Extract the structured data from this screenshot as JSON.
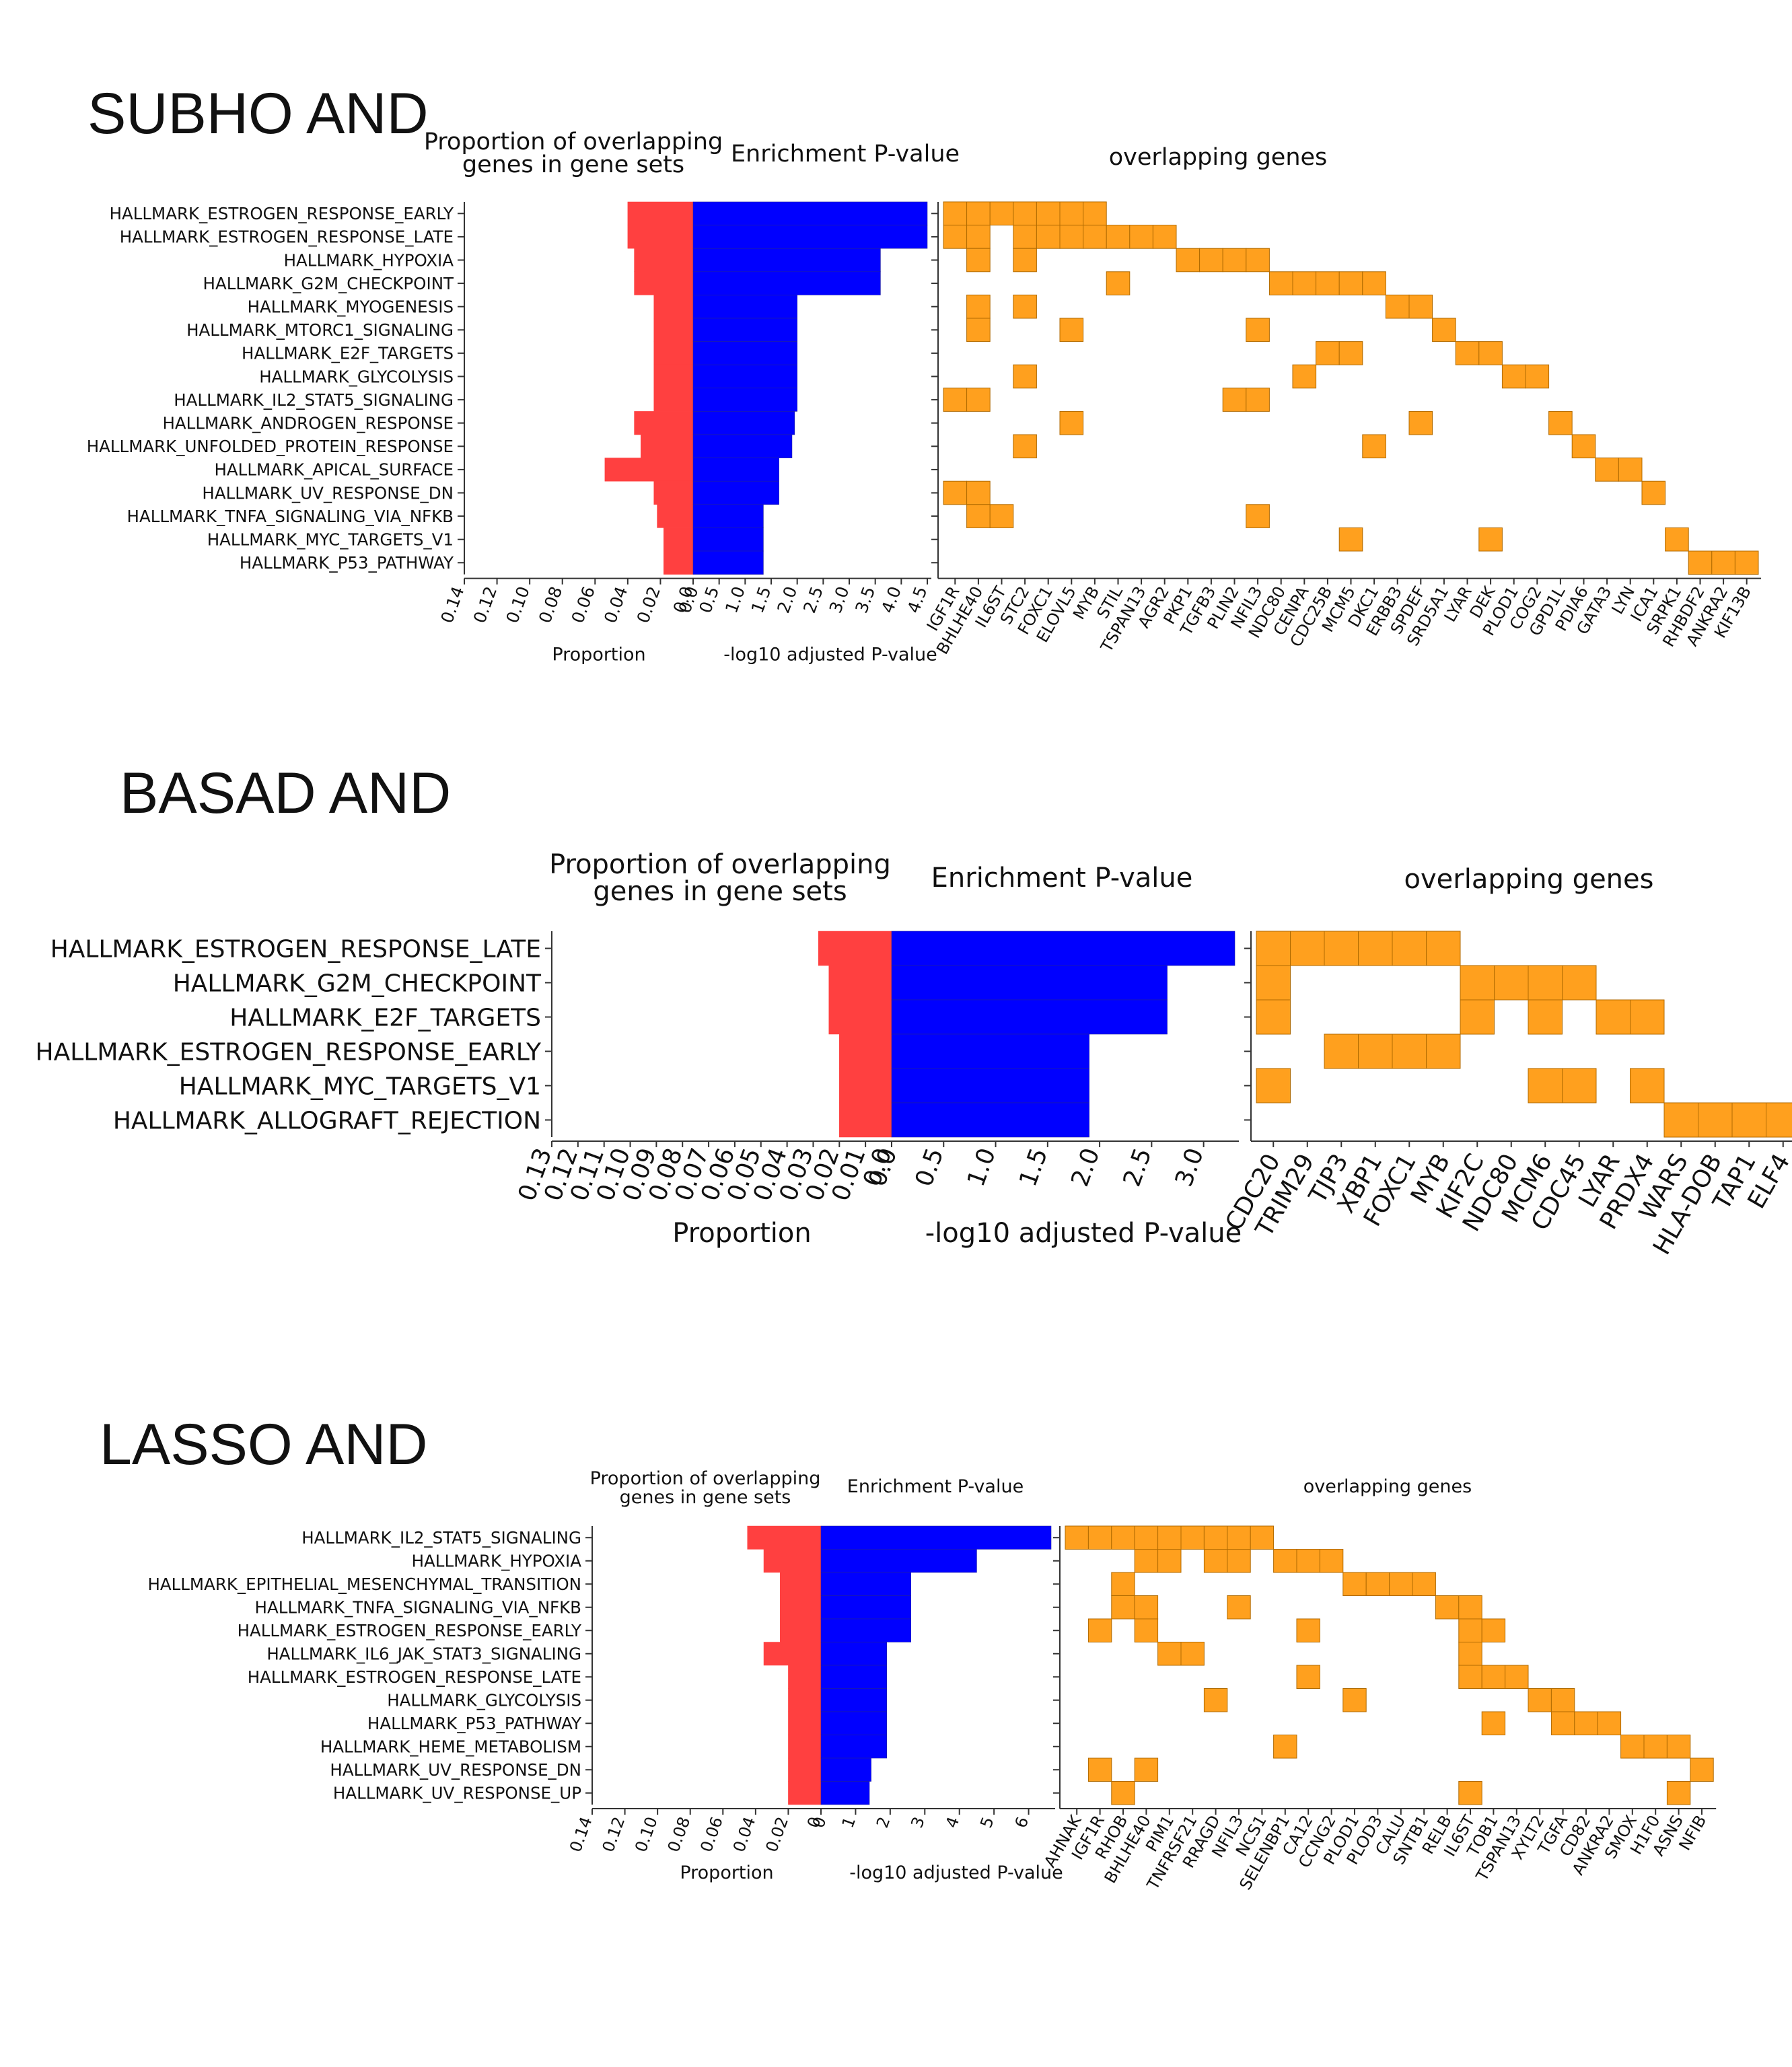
{
  "colors": {
    "proportion_bar": "#ff4040",
    "pvalue_bar": "#0000ff",
    "gene_cell": "#ffa01e",
    "gene_cell_edge": "#b06a00",
    "title": "#1e5a1e",
    "axis": "#333333"
  },
  "chart_data": [
    {
      "type": "bar",
      "title": "SUBHO AND",
      "header_proportion": [
        "Proportion of overlapping",
        "genes in gene sets"
      ],
      "header_pvalue": "Enrichment P-value",
      "header_genes": "overlapping genes",
      "xlabel_proportion": "Proportion",
      "xlabel_pvalue": "-log10 adjusted P-value",
      "categories": [
        "HALLMARK_ESTROGEN_RESPONSE_EARLY",
        "HALLMARK_ESTROGEN_RESPONSE_LATE",
        "HALLMARK_HYPOXIA",
        "HALLMARK_G2M_CHECKPOINT",
        "HALLMARK_MYOGENESIS",
        "HALLMARK_MTORC1_SIGNALING",
        "HALLMARK_E2F_TARGETS",
        "HALLMARK_GLYCOLYSIS",
        "HALLMARK_IL2_STAT5_SIGNALING",
        "HALLMARK_ANDROGEN_RESPONSE",
        "HALLMARK_UNFOLDED_PROTEIN_RESPONSE",
        "HALLMARK_APICAL_SURFACE",
        "HALLMARK_UV_RESPONSE_DN",
        "HALLMARK_TNFA_SIGNALING_VIA_NFKB",
        "HALLMARK_MYC_TARGETS_V1",
        "HALLMARK_P53_PATHWAY"
      ],
      "proportion": [
        0.04,
        0.04,
        0.036,
        0.036,
        0.024,
        0.024,
        0.024,
        0.024,
        0.024,
        0.036,
        0.032,
        0.054,
        0.024,
        0.022,
        0.018,
        0.018
      ],
      "proportion_ticks": [
        "0.14",
        "0.12",
        "0.10",
        "0.08",
        "0.06",
        "0.04",
        "0.02",
        "0.0"
      ],
      "proportion_max": 0.14,
      "neglog10_padj": [
        4.5,
        4.5,
        3.6,
        3.6,
        2.0,
        2.0,
        2.0,
        2.0,
        2.0,
        1.95,
        1.9,
        1.65,
        1.65,
        1.35,
        1.35,
        1.35
      ],
      "pvalue_ticks": [
        "0.0",
        "0.5",
        "1.0",
        "1.5",
        "2.0",
        "2.5",
        "3.0",
        "3.5",
        "4.0",
        "4.5"
      ],
      "pvalue_max": 4.5,
      "genes": [
        "IGF1R",
        "BHLHE40",
        "IL6ST",
        "STC2",
        "FOXC1",
        "ELOVL5",
        "MYB",
        "STIL",
        "TSPAN13",
        "AGR2",
        "PKP1",
        "TGFB3",
        "PLIN2",
        "NFIL3",
        "NDC80",
        "CENPA",
        "CDC25B",
        "MCM5",
        "DKC1",
        "ERBB3",
        "SPDEF",
        "SRD5A1",
        "LYAR",
        "DEK",
        "PLOD1",
        "COG2",
        "GPD1L",
        "PDIA6",
        "GATA3",
        "LYN",
        "ICA1",
        "SRPK1",
        "RHBDF2",
        "ANKRA2",
        "KIF13B"
      ],
      "overlap": [
        [
          0,
          1,
          2,
          3,
          4,
          5,
          6
        ],
        [
          0,
          1,
          3,
          4,
          5,
          6,
          7,
          8,
          9
        ],
        [
          1,
          3,
          10,
          11,
          12,
          13
        ],
        [
          7,
          14,
          15,
          16,
          17,
          18
        ],
        [
          1,
          3,
          19,
          20
        ],
        [
          1,
          5,
          13,
          21
        ],
        [
          16,
          17,
          22,
          23
        ],
        [
          3,
          15,
          24,
          25
        ],
        [
          0,
          1,
          12,
          13
        ],
        [
          5,
          20,
          26
        ],
        [
          3,
          18,
          27
        ],
        [
          28,
          29
        ],
        [
          0,
          1,
          30
        ],
        [
          1,
          2,
          13
        ],
        [
          17,
          23,
          31
        ],
        [
          32,
          33,
          34
        ]
      ]
    },
    {
      "type": "bar",
      "title": "BASAD AND",
      "header_proportion": [
        "Proportion of overlapping",
        "genes in gene sets"
      ],
      "header_pvalue": "Enrichment P-value",
      "header_genes": "overlapping genes",
      "xlabel_proportion": "Proportion",
      "xlabel_pvalue": "-log10 adjusted P-value",
      "categories": [
        "HALLMARK_ESTROGEN_RESPONSE_LATE",
        "HALLMARK_G2M_CHECKPOINT",
        "HALLMARK_E2F_TARGETS",
        "HALLMARK_ESTROGEN_RESPONSE_EARLY",
        "HALLMARK_MYC_TARGETS_V1",
        "HALLMARK_ALLOGRAFT_REJECTION"
      ],
      "proportion": [
        0.028,
        0.024,
        0.024,
        0.02,
        0.02,
        0.02
      ],
      "proportion_ticks": [
        "0.13",
        "0.12",
        "0.11",
        "0.10",
        "0.09",
        "0.08",
        "0.07",
        "0.06",
        "0.05",
        "0.04",
        "0.03",
        "0.02",
        "0.01",
        "0.0"
      ],
      "proportion_max": 0.13,
      "neglog10_padj": [
        3.3,
        2.65,
        2.65,
        1.9,
        1.9,
        1.9
      ],
      "pvalue_ticks": [
        "0.0",
        "0.5",
        "1.0",
        "1.5",
        "2.0",
        "2.5",
        "3.0"
      ],
      "pvalue_max": 3.3,
      "genes": [
        "CDC20",
        "TRIM29",
        "TJP3",
        "XBP1",
        "FOXC1",
        "MYB",
        "KIF2C",
        "NDC80",
        "MCM6",
        "CDC45",
        "LYAR",
        "PRDX4",
        "WARS",
        "HLA-DOB",
        "TAP1",
        "ELF4"
      ],
      "overlap": [
        [
          0,
          1,
          2,
          3,
          4,
          5
        ],
        [
          0,
          6,
          7,
          8,
          9
        ],
        [
          0,
          6,
          8,
          10,
          11
        ],
        [
          2,
          3,
          4,
          5
        ],
        [
          0,
          8,
          9,
          11
        ],
        [
          12,
          13,
          14,
          15
        ]
      ]
    },
    {
      "type": "bar",
      "title": "LASSO AND",
      "header_proportion": [
        "Proportion of overlapping",
        "genes in gene sets"
      ],
      "header_pvalue": "Enrichment P-value",
      "header_genes": "overlapping genes",
      "xlabel_proportion": "Proportion",
      "xlabel_pvalue": "-log10 adjusted P-value",
      "categories": [
        "HALLMARK_IL2_STAT5_SIGNALING",
        "HALLMARK_HYPOXIA",
        "HALLMARK_EPITHELIAL_MESENCHYMAL_TRANSITION",
        "HALLMARK_TNFA_SIGNALING_VIA_NFKB",
        "HALLMARK_ESTROGEN_RESPONSE_EARLY",
        "HALLMARK_IL6_JAK_STAT3_SIGNALING",
        "HALLMARK_ESTROGEN_RESPONSE_LATE",
        "HALLMARK_GLYCOLYSIS",
        "HALLMARK_P53_PATHWAY",
        "HALLMARK_HEME_METABOLISM",
        "HALLMARK_UV_RESPONSE_DN",
        "HALLMARK_UV_RESPONSE_UP"
      ],
      "proportion": [
        0.045,
        0.035,
        0.025,
        0.025,
        0.025,
        0.035,
        0.02,
        0.02,
        0.02,
        0.02,
        0.02,
        0.02
      ],
      "proportion_ticks": [
        "0.14",
        "0.12",
        "0.10",
        "0.08",
        "0.06",
        "0.04",
        "0.02",
        "0"
      ],
      "proportion_max": 0.14,
      "neglog10_padj": [
        6.65,
        4.5,
        2.6,
        2.6,
        2.6,
        1.9,
        1.9,
        1.9,
        1.9,
        1.9,
        1.45,
        1.4
      ],
      "pvalue_ticks": [
        "0",
        "1",
        "2",
        "3",
        "4",
        "5",
        "6"
      ],
      "pvalue_max": 6.65,
      "genes": [
        "AHNAK",
        "IGF1R",
        "RHOB",
        "BHLHE40",
        "PIM1",
        "TNFRSF21",
        "RRAGD",
        "NFIL3",
        "NCS1",
        "SELENBP1",
        "CA12",
        "CCNG2",
        "PLOD1",
        "PLOD3",
        "CALU",
        "SNTB1",
        "RELB",
        "IL6ST",
        "TOB1",
        "TSPAN13",
        "XYLT2",
        "TGFA",
        "CD82",
        "ANKRA2",
        "SMOX",
        "H1F0",
        "ASNS",
        "NFIB"
      ],
      "overlap": [
        [
          0,
          1,
          2,
          3,
          4,
          5,
          6,
          7,
          8
        ],
        [
          3,
          4,
          6,
          7,
          9,
          10,
          11
        ],
        [
          2,
          12,
          13,
          14,
          15
        ],
        [
          2,
          3,
          7,
          16,
          17
        ],
        [
          1,
          3,
          10,
          17,
          18
        ],
        [
          4,
          5,
          17
        ],
        [
          10,
          17,
          18,
          19
        ],
        [
          6,
          12,
          20,
          21
        ],
        [
          18,
          21,
          22,
          23
        ],
        [
          9,
          24,
          25,
          26
        ],
        [
          1,
          3,
          27
        ],
        [
          2,
          17,
          26
        ]
      ]
    }
  ]
}
